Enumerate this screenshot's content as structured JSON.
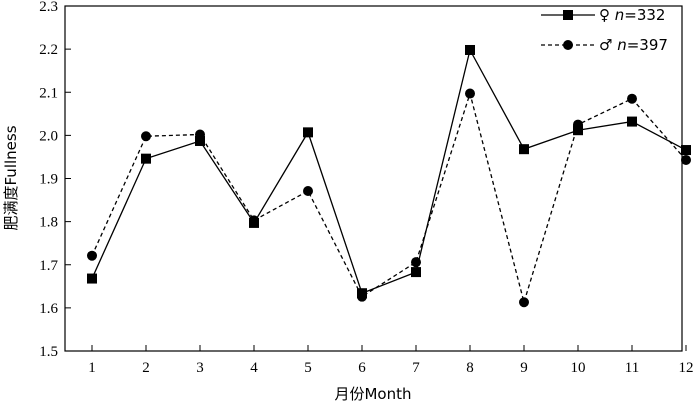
{
  "chart_data": {
    "type": "line",
    "title": "",
    "xlabel": "月份Month",
    "ylabel": "肥满度Fullness",
    "categories": [
      "1",
      "2",
      "3",
      "4",
      "5",
      "6",
      "7",
      "8",
      "9",
      "10",
      "11",
      "12"
    ],
    "ylim": [
      1.5,
      2.3
    ],
    "yticks": [
      "1.5",
      "1.6",
      "1.7",
      "1.8",
      "1.9",
      "2.0",
      "2.1",
      "2.2",
      "2.3"
    ],
    "grid": false,
    "legend_position": "top-right",
    "series": [
      {
        "name": "♀ n=332",
        "symbol": "♀",
        "n_label": "n",
        "n_value": "=332",
        "marker": "square",
        "line_style": "solid",
        "values": [
          1.668,
          1.946,
          1.987,
          1.797,
          2.007,
          1.634,
          1.683,
          2.198,
          1.968,
          2.012,
          2.032,
          1.966
        ]
      },
      {
        "name": "♂ n=397",
        "symbol": "♂",
        "n_label": "n",
        "n_value": "=397",
        "marker": "circle",
        "line_style": "dashed",
        "values": [
          1.721,
          1.998,
          2.002,
          1.803,
          1.871,
          1.626,
          1.706,
          2.097,
          1.613,
          2.025,
          2.085,
          1.943
        ]
      }
    ],
    "colors": {
      "line": "#000000",
      "background": "#ffffff"
    }
  }
}
